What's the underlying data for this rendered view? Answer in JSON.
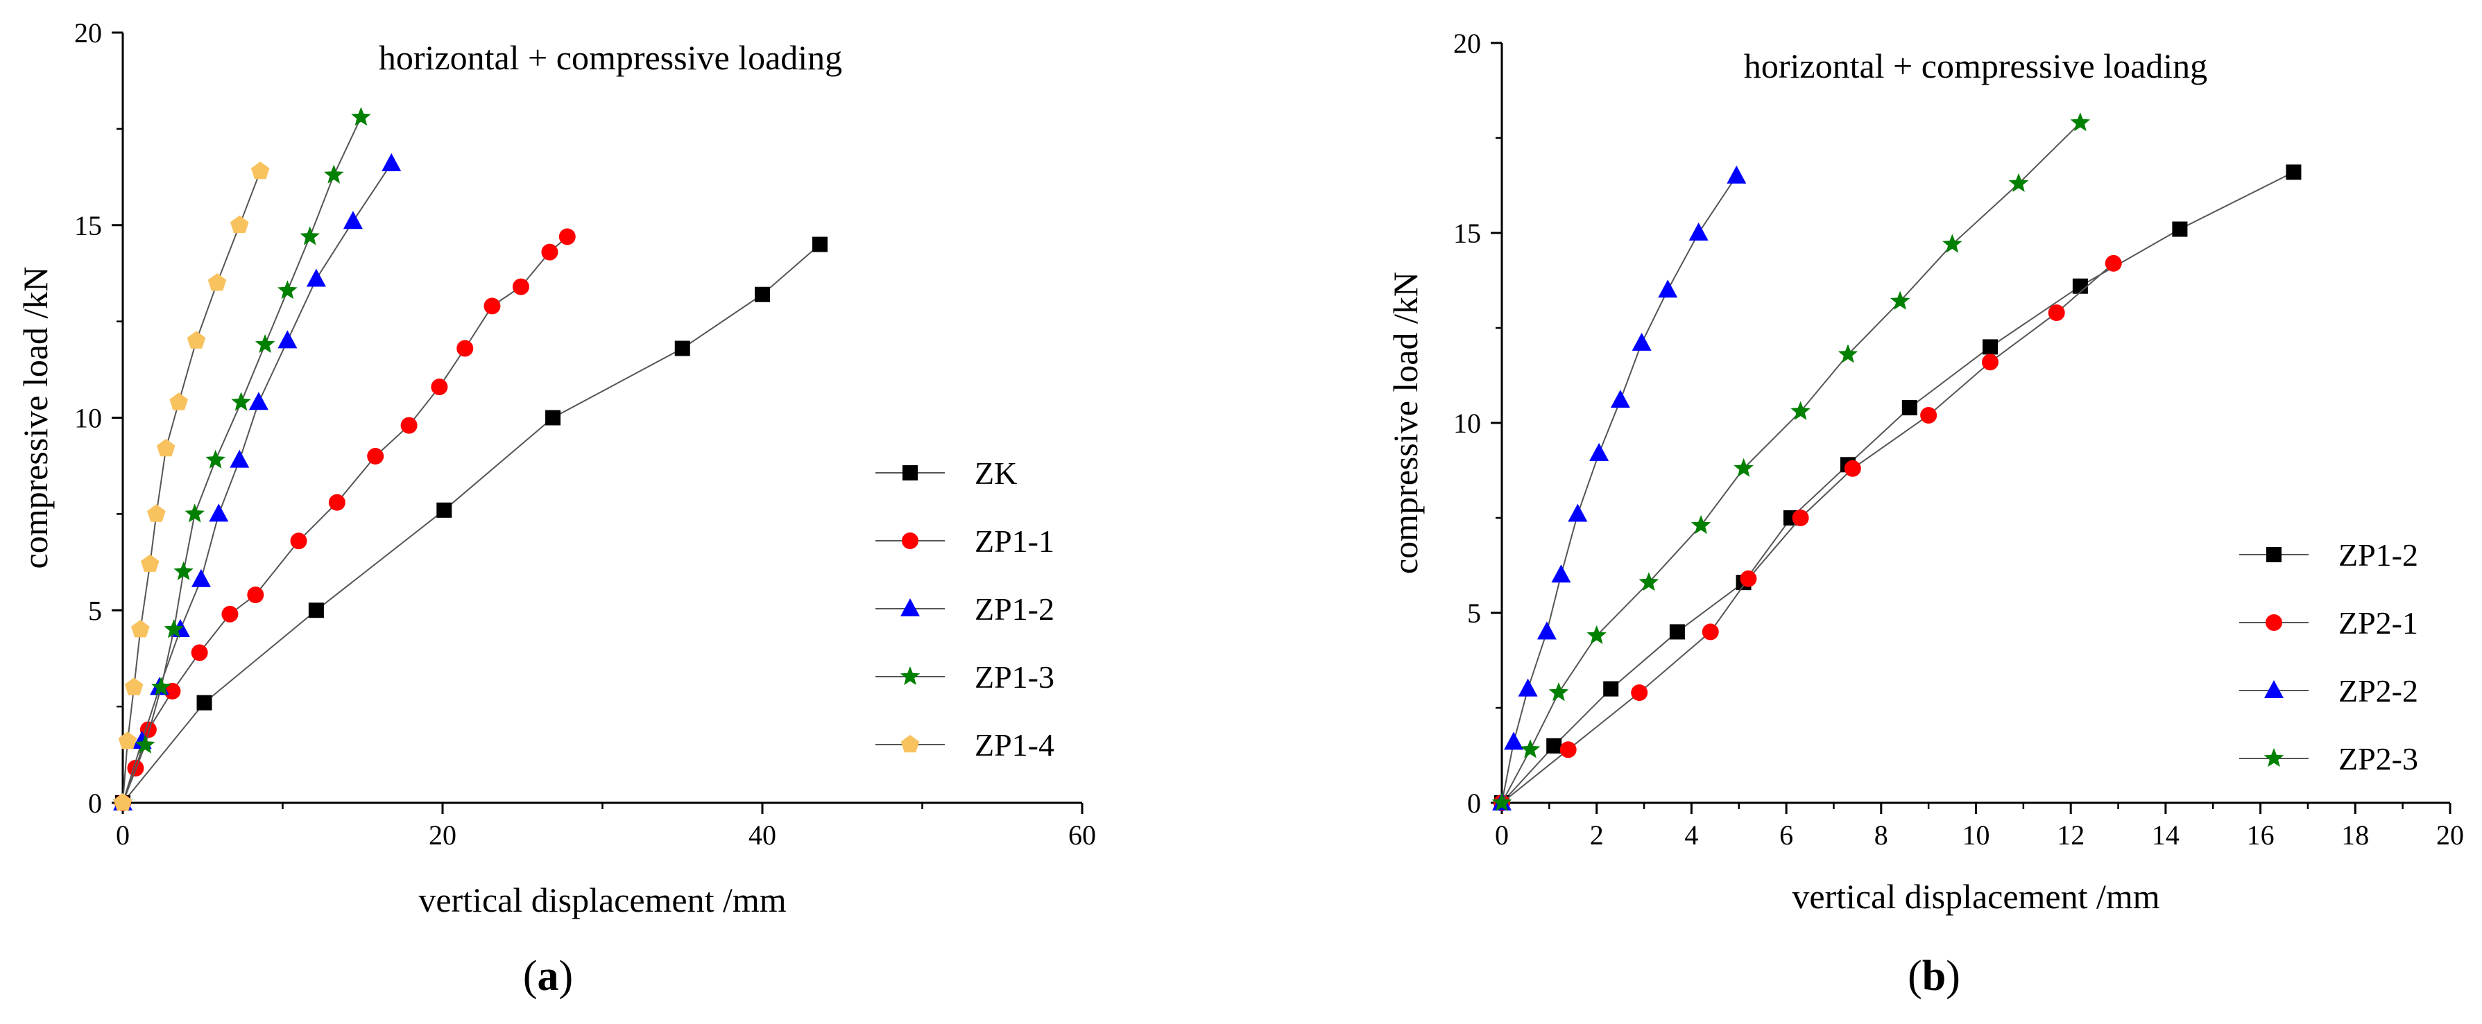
{
  "figure": {
    "panels": [
      {
        "id": "a",
        "label": "(a)",
        "label_letter": "a"
      },
      {
        "id": "b",
        "label": "(b)",
        "label_letter": "b"
      }
    ]
  },
  "chart_data": [
    {
      "type": "line",
      "panel": "(a)",
      "title": "horizontal + compressive loading",
      "xlabel": "vertical displacement /mm",
      "ylabel": "compressive load /kN",
      "xlim": [
        0,
        60
      ],
      "ylim": [
        0,
        20
      ],
      "xticks": [
        0,
        20,
        40,
        60
      ],
      "yticks": [
        0,
        5,
        10,
        15,
        20
      ],
      "grid": false,
      "legend_position": "right",
      "series": [
        {
          "name": "ZK",
          "marker": "square",
          "color": "#000000",
          "x": [
            0,
            5.1,
            12.1,
            20.1,
            26.9,
            35.0,
            40.0,
            43.6
          ],
          "y": [
            0,
            2.6,
            5.0,
            7.6,
            10.0,
            11.8,
            13.2,
            14.5
          ]
        },
        {
          "name": "ZP1-1",
          "marker": "circle",
          "color": "#ff0000",
          "x": [
            0,
            0.8,
            1.6,
            3.1,
            4.8,
            6.7,
            8.3,
            11.0,
            13.4,
            15.8,
            17.9,
            19.8,
            21.4,
            23.1,
            24.9,
            26.7,
            27.8
          ],
          "y": [
            0,
            0.9,
            1.9,
            2.9,
            3.9,
            4.9,
            5.4,
            6.8,
            7.8,
            9.0,
            9.8,
            10.8,
            11.8,
            12.9,
            13.4,
            14.3,
            14.7
          ]
        },
        {
          "name": "ZP1-2",
          "marker": "triangle",
          "color": "#0000ff",
          "x": [
            0,
            1.2,
            2.3,
            3.6,
            4.9,
            6.0,
            7.3,
            8.5,
            10.3,
            12.1,
            14.4,
            16.8
          ],
          "y": [
            0,
            1.6,
            3.0,
            4.5,
            5.8,
            7.5,
            8.9,
            10.4,
            12.0,
            13.6,
            15.1,
            16.6
          ]
        },
        {
          "name": "ZP1-3",
          "marker": "star",
          "color": "#008000",
          "x": [
            0,
            1.4,
            2.4,
            3.2,
            3.8,
            4.5,
            5.8,
            7.4,
            8.9,
            10.3,
            11.7,
            13.2,
            14.9
          ],
          "y": [
            0,
            1.5,
            3.0,
            4.5,
            6.0,
            7.5,
            8.9,
            10.4,
            11.9,
            13.3,
            14.7,
            16.3,
            17.8
          ]
        },
        {
          "name": "ZP1-4",
          "marker": "pentagon",
          "color": "#f8c25f",
          "x": [
            0,
            0.3,
            0.7,
            1.1,
            1.7,
            2.1,
            2.7,
            3.5,
            4.6,
            5.9,
            7.3,
            8.6
          ],
          "y": [
            0,
            1.6,
            3.0,
            4.5,
            6.2,
            7.5,
            9.2,
            10.4,
            12.0,
            13.5,
            15.0,
            16.4
          ]
        }
      ]
    },
    {
      "type": "line",
      "panel": "(b)",
      "title": "horizontal + compressive loading",
      "xlabel": "vertical displacement /mm",
      "ylabel": "compressive load /kN",
      "xlim": [
        0,
        20
      ],
      "ylim": [
        0,
        20
      ],
      "xticks": [
        0,
        2,
        4,
        6,
        8,
        10,
        12,
        14,
        16,
        18,
        20
      ],
      "yticks": [
        0,
        5,
        10,
        15,
        20
      ],
      "grid": false,
      "legend_position": "right",
      "series": [
        {
          "name": "ZP1-2",
          "marker": "square",
          "color": "#000000",
          "x": [
            0,
            1.1,
            2.3,
            3.7,
            5.1,
            6.1,
            7.3,
            8.6,
            10.3,
            12.2,
            14.3,
            16.7
          ],
          "y": [
            0,
            1.5,
            3.0,
            4.5,
            5.8,
            7.5,
            8.9,
            10.4,
            12.0,
            13.6,
            15.1,
            16.6
          ]
        },
        {
          "name": "ZP2-1",
          "marker": "circle",
          "color": "#ff0000",
          "x": [
            0,
            1.4,
            2.9,
            4.4,
            5.2,
            6.3,
            7.4,
            9.0,
            10.3,
            11.7,
            12.9
          ],
          "y": [
            0,
            1.4,
            2.9,
            4.5,
            5.9,
            7.5,
            8.8,
            10.2,
            11.6,
            12.9,
            14.2
          ]
        },
        {
          "name": "ZP2-2",
          "marker": "triangle",
          "color": "#0000ff",
          "x": [
            0,
            0.25,
            0.55,
            0.95,
            1.25,
            1.6,
            2.05,
            2.5,
            2.95,
            3.5,
            4.15,
            4.95
          ],
          "y": [
            0,
            1.6,
            3.0,
            4.5,
            6.0,
            7.6,
            9.2,
            10.6,
            12.1,
            13.5,
            15.0,
            16.5
          ]
        },
        {
          "name": "ZP2-3",
          "marker": "star",
          "color": "#008000",
          "x": [
            0,
            0.6,
            1.2,
            2.0,
            3.1,
            4.2,
            5.1,
            6.3,
            7.3,
            8.4,
            9.5,
            10.9,
            12.2
          ],
          "y": [
            0,
            1.4,
            2.9,
            4.4,
            5.8,
            7.3,
            8.8,
            10.3,
            11.8,
            13.2,
            14.7,
            16.3,
            17.9
          ]
        }
      ]
    }
  ]
}
